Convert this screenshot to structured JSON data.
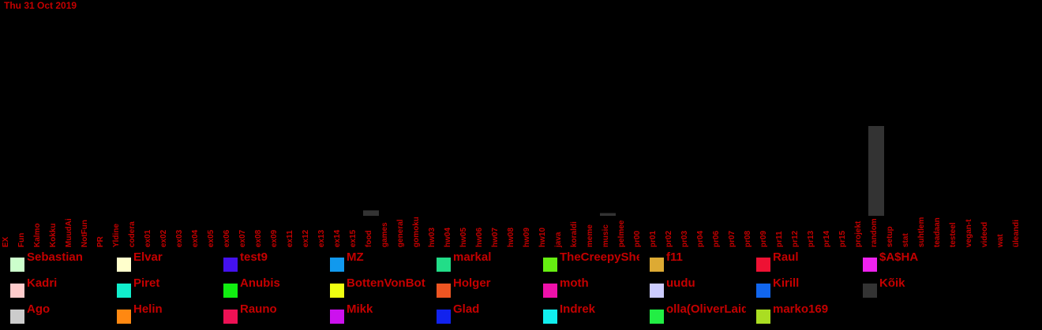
{
  "header": {
    "date": "Thu 31 Oct 2019"
  },
  "chart_data": {
    "type": "bar",
    "categories": [
      "EX",
      "Fun",
      "Kalmo",
      "Kokku",
      "MuudAi",
      "NotFun",
      "PR",
      "Yldine",
      "codera",
      "ex01",
      "ex02",
      "ex03",
      "ex04",
      "ex05",
      "ex06",
      "ex07",
      "ex08",
      "ex09",
      "ex11",
      "ex12",
      "ex13",
      "ex14",
      "ex15",
      "food",
      "games",
      "general",
      "gomoku",
      "hw03",
      "hw04",
      "hw05",
      "hw06",
      "hw07",
      "hw08",
      "hw09",
      "hw10",
      "java",
      "koraldi",
      "meme",
      "music",
      "pelmeeni",
      "pr00",
      "pr01",
      "pr02",
      "pr03",
      "pr04",
      "pr06",
      "pr07",
      "pr08",
      "pr09",
      "pr11",
      "pr12",
      "pr13",
      "pr14",
      "pr15",
      "projekt",
      "random",
      "setup",
      "stat",
      "suhtlem",
      "teadaan",
      "testeel",
      "vegan-t",
      "videod",
      "wat",
      "üleandi"
    ],
    "series": [
      {
        "name": "Kõik",
        "color": "#333333",
        "values": [
          0,
          0,
          0,
          0,
          0,
          0,
          0,
          0,
          0,
          0,
          0,
          0,
          0,
          0,
          0,
          0,
          0,
          0,
          0,
          0,
          0,
          0,
          0,
          6,
          0,
          0,
          0,
          0,
          0,
          0,
          0,
          0,
          0,
          0,
          0,
          0,
          0,
          0,
          3,
          0,
          0,
          0,
          0,
          0,
          0,
          0,
          0,
          0,
          0,
          0,
          0,
          0,
          0,
          0,
          0,
          100,
          0,
          0,
          0,
          0,
          0,
          0,
          0,
          0,
          0
        ]
      }
    ],
    "ylim": [
      0,
      100
    ],
    "grid": false,
    "legend_position": "bottom"
  },
  "legend": [
    {
      "name": "Sebastian",
      "color": "#ccffcc"
    },
    {
      "name": "Elvar",
      "color": "#ffffcc"
    },
    {
      "name": "test9",
      "color": "#4411ee"
    },
    {
      "name": "MZ",
      "color": "#1199ee"
    },
    {
      "name": "markal",
      "color": "#22dd88"
    },
    {
      "name": "TheCreepySheep",
      "color": "#66ee11"
    },
    {
      "name": "f11",
      "color": "#ddaa33"
    },
    {
      "name": "Raul",
      "color": "#ee1133"
    },
    {
      "name": "$A$HA",
      "color": "#ee22ee"
    },
    {
      "name": "Kadri",
      "color": "#ffcccc"
    },
    {
      "name": "Piret",
      "color": "#11eecc"
    },
    {
      "name": "Anubis",
      "color": "#11ee11"
    },
    {
      "name": "BottenVonBot",
      "color": "#eeff11"
    },
    {
      "name": "Holger",
      "color": "#ee5522"
    },
    {
      "name": "moth",
      "color": "#ee11aa"
    },
    {
      "name": "uudu",
      "color": "#ccccff"
    },
    {
      "name": "Kirill",
      "color": "#1166ee"
    },
    {
      "name": "Kõik",
      "color": "#333333"
    },
    {
      "name": "Ago",
      "color": "#cccccc"
    },
    {
      "name": "Helin",
      "color": "#ff8811"
    },
    {
      "name": "Rauno",
      "color": "#ee1155"
    },
    {
      "name": "Mikk",
      "color": "#cc11ee"
    },
    {
      "name": "Glad",
      "color": "#1122ee"
    },
    {
      "name": "Indrek",
      "color": "#11eeee"
    },
    {
      "name": "olla(OliverLaidma)",
      "color": "#22ee44"
    },
    {
      "name": "marko169",
      "color": "#aadd22"
    }
  ]
}
